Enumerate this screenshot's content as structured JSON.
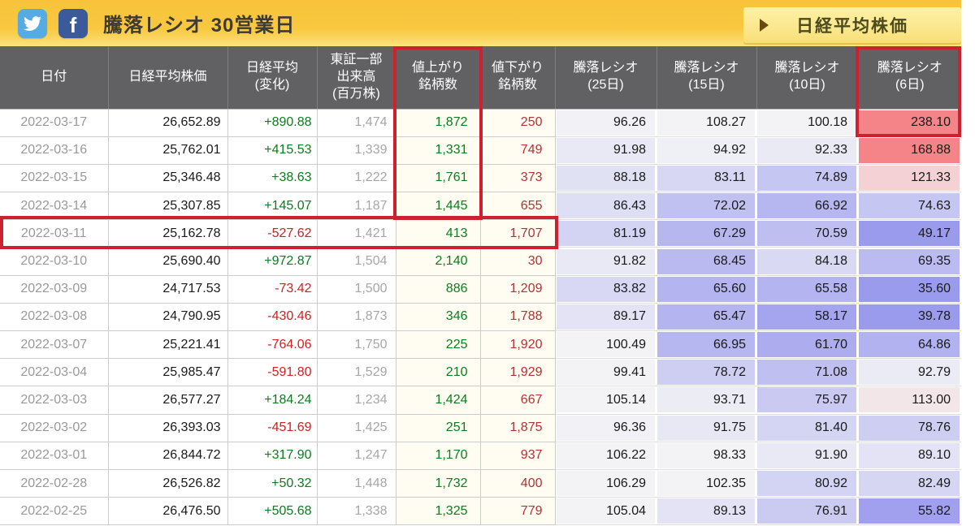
{
  "topbar": {
    "title": "騰落レシオ 30営業日",
    "share_buttons": [
      {
        "name": "twitter",
        "color": "#55ace4"
      },
      {
        "name": "facebook",
        "color": "#3a5a9a",
        "letter": "f"
      }
    ],
    "nav_button": {
      "label": "日経平均株価",
      "arrow": "right-triangle"
    }
  },
  "colors": {
    "topbar_gold": "#f9c840",
    "header_gray": "#616164",
    "positive_green": "#0a7d1e",
    "negative_red": "#cc2222",
    "decliner_red": "#b23232",
    "date_gray": "#999999",
    "volume_gray": "#a6a6a6",
    "highlight_red": "#ce2130",
    "ratio_base_bg": "#f3f3f6",
    "ratio_low_blue": "#5c5ce8",
    "ratio_high_red": "#f53437"
  },
  "table": {
    "columns": [
      {
        "key": "date",
        "label": "日付"
      },
      {
        "key": "nikkei",
        "label": "日経平均株価"
      },
      {
        "key": "change",
        "label": "日経平均\n(変化)"
      },
      {
        "key": "volume",
        "label": "東証一部\n出来高\n(百万株)"
      },
      {
        "key": "advancers",
        "label": "値上がり\n銘柄数"
      },
      {
        "key": "decliners",
        "label": "値下がり\n銘柄数"
      },
      {
        "key": "ratio25",
        "label": "騰落レシオ\n(25日)"
      },
      {
        "key": "ratio15",
        "label": "騰落レシオ\n(15日)"
      },
      {
        "key": "ratio10",
        "label": "騰落レシオ\n(10日)"
      },
      {
        "key": "ratio6",
        "label": "騰落レシオ\n(6日)"
      }
    ],
    "rows": [
      {
        "date": "2022-03-17",
        "nikkei": "26,652.89",
        "change": "+890.88",
        "volume": "1,474",
        "advancers": "1,872",
        "decliners": "250",
        "ratio25": "96.26",
        "ratio15": "108.27",
        "ratio10": "100.18",
        "ratio6": "238.10"
      },
      {
        "date": "2022-03-16",
        "nikkei": "25,762.01",
        "change": "+415.53",
        "volume": "1,339",
        "advancers": "1,331",
        "decliners": "749",
        "ratio25": "91.98",
        "ratio15": "94.92",
        "ratio10": "92.33",
        "ratio6": "168.88"
      },
      {
        "date": "2022-03-15",
        "nikkei": "25,346.48",
        "change": "+38.63",
        "volume": "1,222",
        "advancers": "1,761",
        "decliners": "373",
        "ratio25": "88.18",
        "ratio15": "83.11",
        "ratio10": "74.89",
        "ratio6": "121.33"
      },
      {
        "date": "2022-03-14",
        "nikkei": "25,307.85",
        "change": "+145.07",
        "volume": "1,187",
        "advancers": "1,445",
        "decliners": "655",
        "ratio25": "86.43",
        "ratio15": "72.02",
        "ratio10": "66.92",
        "ratio6": "74.63"
      },
      {
        "date": "2022-03-11",
        "nikkei": "25,162.78",
        "change": "-527.62",
        "volume": "1,421",
        "advancers": "413",
        "decliners": "1,707",
        "ratio25": "81.19",
        "ratio15": "67.29",
        "ratio10": "70.59",
        "ratio6": "49.17"
      },
      {
        "date": "2022-03-10",
        "nikkei": "25,690.40",
        "change": "+972.87",
        "volume": "1,504",
        "advancers": "2,140",
        "decliners": "30",
        "ratio25": "91.82",
        "ratio15": "68.45",
        "ratio10": "84.18",
        "ratio6": "69.35"
      },
      {
        "date": "2022-03-09",
        "nikkei": "24,717.53",
        "change": "-73.42",
        "volume": "1,500",
        "advancers": "886",
        "decliners": "1,209",
        "ratio25": "83.82",
        "ratio15": "65.60",
        "ratio10": "65.58",
        "ratio6": "35.60"
      },
      {
        "date": "2022-03-08",
        "nikkei": "24,790.95",
        "change": "-430.46",
        "volume": "1,873",
        "advancers": "346",
        "decliners": "1,788",
        "ratio25": "89.17",
        "ratio15": "65.47",
        "ratio10": "58.17",
        "ratio6": "39.78"
      },
      {
        "date": "2022-03-07",
        "nikkei": "25,221.41",
        "change": "-764.06",
        "volume": "1,750",
        "advancers": "225",
        "decliners": "1,920",
        "ratio25": "100.49",
        "ratio15": "66.95",
        "ratio10": "61.70",
        "ratio6": "64.86"
      },
      {
        "date": "2022-03-04",
        "nikkei": "25,985.47",
        "change": "-591.80",
        "volume": "1,529",
        "advancers": "210",
        "decliners": "1,929",
        "ratio25": "99.41",
        "ratio15": "78.72",
        "ratio10": "71.08",
        "ratio6": "92.79"
      },
      {
        "date": "2022-03-03",
        "nikkei": "26,577.27",
        "change": "+184.24",
        "volume": "1,234",
        "advancers": "1,424",
        "decliners": "667",
        "ratio25": "105.14",
        "ratio15": "93.71",
        "ratio10": "75.97",
        "ratio6": "113.00"
      },
      {
        "date": "2022-03-02",
        "nikkei": "26,393.03",
        "change": "-451.69",
        "volume": "1,425",
        "advancers": "251",
        "decliners": "1,875",
        "ratio25": "96.36",
        "ratio15": "91.75",
        "ratio10": "81.40",
        "ratio6": "78.76"
      },
      {
        "date": "2022-03-01",
        "nikkei": "26,844.72",
        "change": "+317.90",
        "volume": "1,247",
        "advancers": "1,170",
        "decliners": "937",
        "ratio25": "106.22",
        "ratio15": "98.33",
        "ratio10": "91.90",
        "ratio6": "89.10"
      },
      {
        "date": "2022-02-28",
        "nikkei": "26,526.82",
        "change": "+50.32",
        "volume": "1,448",
        "advancers": "1,732",
        "decliners": "400",
        "ratio25": "106.29",
        "ratio15": "102.35",
        "ratio10": "80.92",
        "ratio6": "82.49"
      },
      {
        "date": "2022-02-25",
        "nikkei": "26,476.50",
        "change": "+505.68",
        "volume": "1,338",
        "advancers": "1,325",
        "decliners": "779",
        "ratio25": "105.04",
        "ratio15": "89.13",
        "ratio10": "76.91",
        "ratio6": "55.82"
      }
    ]
  },
  "highlights": [
    {
      "name": "advancers-column",
      "label": "値上がり銘柄数",
      "color": "#ce2130"
    },
    {
      "name": "row-2022-03-11",
      "label": "2022-03-11",
      "color": "#ce2130"
    },
    {
      "name": "ratio6-column",
      "label": "騰落レシオ(6日)",
      "color": "#ce2130"
    }
  ]
}
